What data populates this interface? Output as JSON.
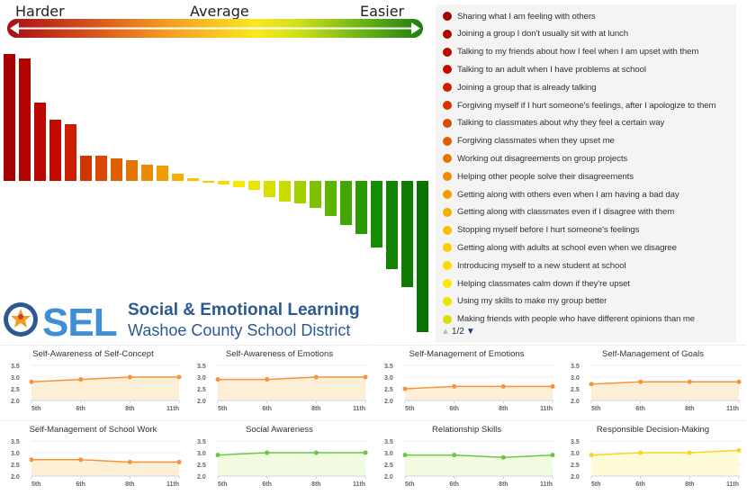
{
  "scale": {
    "harder": "Harder",
    "average": "Average",
    "easier": "Easier"
  },
  "palette": [
    "#a80000",
    "#c40a00",
    "#d84a00",
    "#ec8a00",
    "#fbbf00",
    "#fbe800",
    "#c8dc00",
    "#5ab400",
    "#168c00",
    "#0a7400"
  ],
  "chart_data": [
    {
      "type": "bar",
      "title": "",
      "values": [
        141,
        136,
        87,
        68,
        63,
        28,
        28,
        25,
        23,
        18,
        17,
        8,
        3,
        -2,
        -4,
        -7,
        -10,
        -18,
        -23,
        -25,
        -30,
        -39,
        -49,
        -59,
        -74,
        -98,
        -118,
        -168
      ],
      "color_scale": "red (harder) to green (easier)"
    },
    {
      "type": "line",
      "title": "Self-Awareness of Self-Concept",
      "categories": [
        "5th",
        "6th",
        "8th",
        "11th"
      ],
      "values": [
        2.8,
        2.9,
        3.0,
        3.0
      ],
      "ylim": [
        2.0,
        3.5
      ],
      "yticks": [
        "2.0",
        "2.5",
        "3.0",
        "3.5"
      ],
      "color": "#f7943b",
      "fill": "#fdefd6"
    },
    {
      "type": "line",
      "title": "Self-Awareness of Emotions",
      "categories": [
        "5th",
        "6th",
        "8th",
        "11th"
      ],
      "values": [
        2.9,
        2.9,
        3.0,
        3.0
      ],
      "ylim": [
        2.0,
        3.5
      ],
      "yticks": [
        "2.0",
        "2.5",
        "3.0",
        "3.5"
      ],
      "color": "#f7943b",
      "fill": "#fdefd6"
    },
    {
      "type": "line",
      "title": "Self-Management of Emotions",
      "categories": [
        "5th",
        "6th",
        "8th",
        "11th"
      ],
      "values": [
        2.5,
        2.6,
        2.6,
        2.6
      ],
      "ylim": [
        2.0,
        3.5
      ],
      "yticks": [
        "2.0",
        "2.5",
        "3.0",
        "3.5"
      ],
      "color": "#f7943b",
      "fill": "#fdefd6"
    },
    {
      "type": "line",
      "title": "Self-Management of Goals",
      "categories": [
        "5th",
        "6th",
        "8th",
        "11th"
      ],
      "values": [
        2.7,
        2.8,
        2.8,
        2.8
      ],
      "ylim": [
        2.0,
        3.5
      ],
      "yticks": [
        "2.0",
        "2.5",
        "3.0",
        "3.5"
      ],
      "color": "#f7943b",
      "fill": "#fdefd6"
    },
    {
      "type": "line",
      "title": "Self-Management of School Work",
      "categories": [
        "5th",
        "6th",
        "8th",
        "11th"
      ],
      "values": [
        2.7,
        2.7,
        2.6,
        2.6
      ],
      "ylim": [
        2.0,
        3.5
      ],
      "yticks": [
        "2.0",
        "2.5",
        "3.0",
        "3.5"
      ],
      "color": "#f7943b",
      "fill": "#fdefd6"
    },
    {
      "type": "line",
      "title": "Social Awareness",
      "categories": [
        "5th",
        "6th",
        "8th",
        "11th"
      ],
      "values": [
        2.9,
        3.0,
        3.0,
        3.0
      ],
      "ylim": [
        2.0,
        3.5
      ],
      "yticks": [
        "2.0",
        "2.5",
        "3.0",
        "3.5"
      ],
      "color": "#6cc644",
      "fill": "#f1fbdf"
    },
    {
      "type": "line",
      "title": "Relationship Skills",
      "categories": [
        "5th",
        "6th",
        "8th",
        "11th"
      ],
      "values": [
        2.9,
        2.9,
        2.8,
        2.9
      ],
      "ylim": [
        2.0,
        3.5
      ],
      "yticks": [
        "2.0",
        "2.5",
        "3.0",
        "3.5"
      ],
      "color": "#6cc644",
      "fill": "#f1fbdf"
    },
    {
      "type": "line",
      "title": "Responsible Decision-Making",
      "categories": [
        "5th",
        "6th",
        "8th",
        "11th"
      ],
      "values": [
        2.9,
        3.0,
        3.0,
        3.1
      ],
      "ylim": [
        2.0,
        3.5
      ],
      "yticks": [
        "2.0",
        "2.5",
        "3.0",
        "3.5"
      ],
      "color": "#f8d42a",
      "fill": "#fdfbd8"
    }
  ],
  "legend": {
    "items": [
      "Sharing what I am feeling with others",
      "Joining a group I don't usually sit with at lunch",
      "Talking to my friends about how I feel when I am upset with them",
      "Talking to an adult when I have problems at school",
      "Joining a group that is already talking",
      "Forgiving myself if I hurt someone's feelings, after I apologize to them",
      "Talking to classmates about why they feel a certain way",
      "Forgiving classmates when they upset me",
      "Working out disagreements on group projects",
      "Helping other people solve their disagreements",
      "Getting along with others even when I am having a bad day",
      "Getting along with classmates even if I disagree with them",
      "Stopping myself before I hurt someone's feelings",
      "Getting along with adults at school even when we disagree",
      "Introducing myself to a new student at school",
      "Helping classmates calm down if they're upset",
      "Using my skills to make my group better",
      "Making friends with people who have different opinions than me"
    ],
    "page": "1/2"
  },
  "logo": {
    "mark": "SEL",
    "line1": "Social & Emotional Learning",
    "line2": "Washoe County School District"
  }
}
